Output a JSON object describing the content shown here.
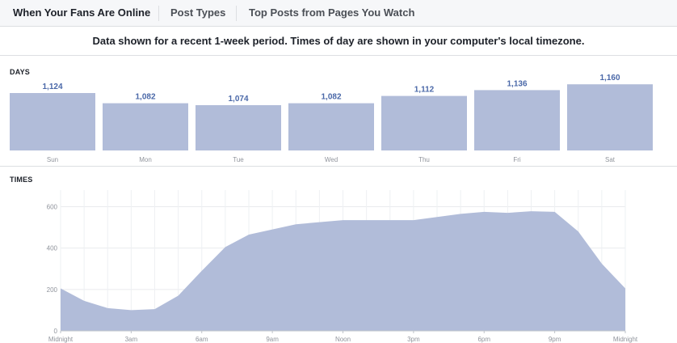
{
  "tabs": [
    {
      "label": "When Your Fans Are Online",
      "active": true
    },
    {
      "label": "Post Types",
      "active": false
    },
    {
      "label": "Top Posts from Pages You Watch",
      "active": false
    }
  ],
  "notice": "Data shown for a recent 1-week period. Times of day are shown in your computer's local timezone.",
  "days_section": {
    "label": "DAYS"
  },
  "times_section": {
    "label": "TIMES"
  },
  "colors": {
    "bar": "#b1bcd9",
    "value_label": "#4a68a8",
    "axis_text": "#90949c"
  },
  "chart_data": [
    {
      "type": "bar",
      "categories": [
        "Sun",
        "Mon",
        "Tue",
        "Wed",
        "Thu",
        "Fri",
        "Sat"
      ],
      "values": [
        1124,
        1082,
        1074,
        1082,
        1112,
        1136,
        1160
      ],
      "value_labels": [
        "1,124",
        "1,082",
        "1,074",
        "1,082",
        "1,112",
        "1,136",
        "1,160"
      ],
      "title": "DAYS"
    },
    {
      "type": "area",
      "title": "TIMES",
      "x": [
        0,
        1,
        2,
        3,
        4,
        5,
        6,
        7,
        8,
        9,
        10,
        11,
        12,
        13,
        14,
        15,
        16,
        17,
        18,
        19,
        20,
        21,
        22,
        23,
        24
      ],
      "values": [
        205,
        145,
        110,
        100,
        105,
        170,
        290,
        405,
        465,
        490,
        515,
        525,
        535,
        535,
        535,
        535,
        550,
        565,
        575,
        570,
        578,
        575,
        480,
        325,
        205
      ],
      "ylim": [
        0,
        680
      ],
      "yticks": [
        0,
        200,
        400,
        600
      ],
      "xtick_positions": [
        0,
        3,
        6,
        9,
        12,
        15,
        18,
        21,
        24
      ],
      "xtick_labels": [
        "Midnight",
        "3am",
        "6am",
        "9am",
        "Noon",
        "3pm",
        "6pm",
        "9pm",
        "Midnight"
      ],
      "grid": true
    }
  ]
}
